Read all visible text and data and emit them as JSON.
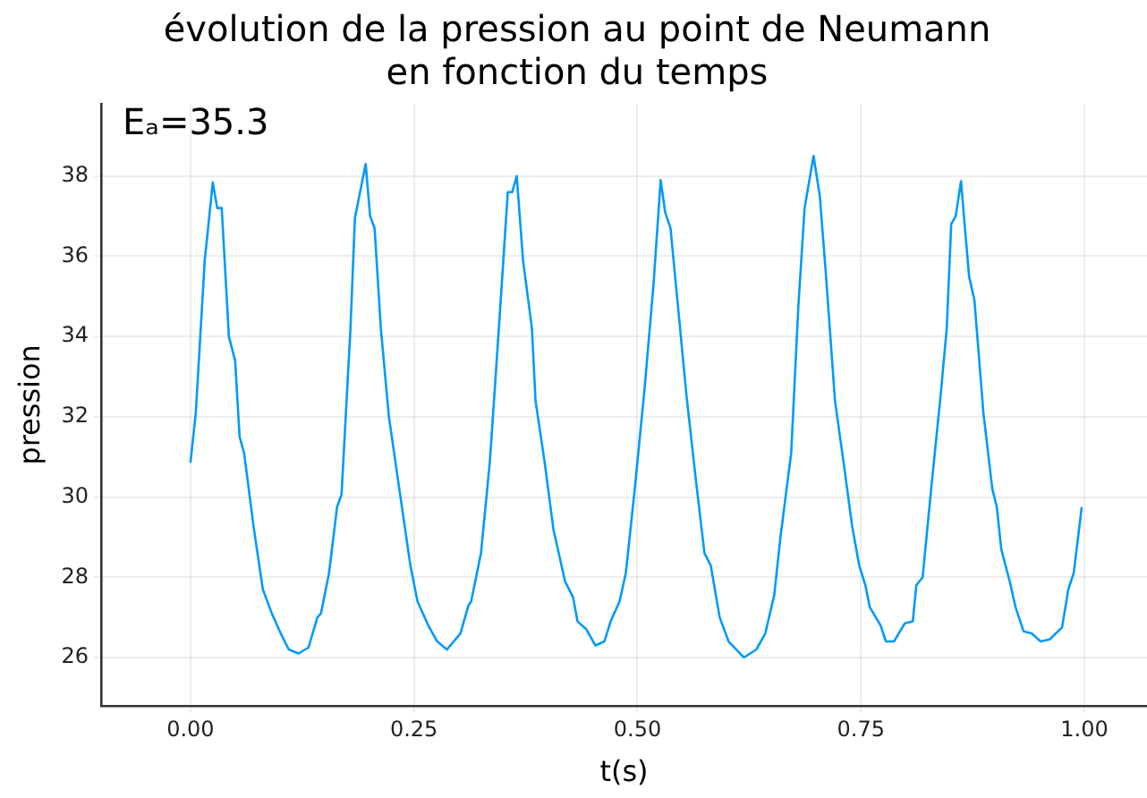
{
  "chart_data": {
    "type": "line",
    "title": "évolution de la pression au point de Neumann\nen fonction du temps",
    "xlabel": "t(s)",
    "ylabel": "pression",
    "annotations": [
      "Eₐ=35.3"
    ],
    "xlim": [
      -0.1,
      1.07
    ],
    "ylim": [
      24.8,
      39.8
    ],
    "xticks": [
      {
        "value": 0,
        "label": "0.00"
      },
      {
        "value": 0.25,
        "label": "0.25"
      },
      {
        "value": 0.5,
        "label": "0.50"
      },
      {
        "value": 0.75,
        "label": "0.75"
      },
      {
        "value": 1,
        "label": "1.00"
      }
    ],
    "yticks": [
      26,
      28,
      30,
      32,
      34,
      36,
      38
    ],
    "grid": true,
    "legend": false,
    "marker": "none",
    "line_style": "solid",
    "series": [
      {
        "color": "#009af9",
        "x": [
          0,
          0.006,
          0.016,
          0.025,
          0.03,
          0.035,
          0.043,
          0.05,
          0.055,
          0.06,
          0.071,
          0.081,
          0.091,
          0.101,
          0.11,
          0.121,
          0.132,
          0.142,
          0.146,
          0.155,
          0.164,
          0.169,
          0.179,
          0.184,
          0.196,
          0.201,
          0.206,
          0.213,
          0.222,
          0.233,
          0.246,
          0.254,
          0.266,
          0.276,
          0.287,
          0.302,
          0.311,
          0.314,
          0.325,
          0.335,
          0.345,
          0.355,
          0.36,
          0.365,
          0.372,
          0.382,
          0.386,
          0.396,
          0.406,
          0.419,
          0.428,
          0.433,
          0.443,
          0.453,
          0.463,
          0.47,
          0.48,
          0.487,
          0.497,
          0.508,
          0.518,
          0.526,
          0.531,
          0.537,
          0.546,
          0.555,
          0.565,
          0.575,
          0.582,
          0.592,
          0.602,
          0.619,
          0.633,
          0.643,
          0.653,
          0.66,
          0.672,
          0.68,
          0.687,
          0.697,
          0.704,
          0.711,
          0.721,
          0.731,
          0.74,
          0.748,
          0.755,
          0.76,
          0.772,
          0.778,
          0.787,
          0.799,
          0.808,
          0.812,
          0.819,
          0.829,
          0.839,
          0.846,
          0.851,
          0.856,
          0.862,
          0.866,
          0.871,
          0.877,
          0.887,
          0.897,
          0.902,
          0.907,
          0.917,
          0.923,
          0.932,
          0.941,
          0.951,
          0.961,
          0.975,
          0.982,
          0.988,
          0.997
        ],
        "values": [
          30.85,
          32.1,
          35.9,
          37.84,
          37.2,
          37.2,
          34.0,
          33.4,
          31.5,
          31.1,
          29.2,
          27.7,
          27.1,
          26.6,
          26.2,
          26.1,
          26.25,
          27.0,
          27.1,
          28.1,
          29.75,
          30.06,
          34.2,
          36.95,
          38.3,
          37.0,
          36.7,
          34.2,
          32.0,
          30.3,
          28.3,
          27.4,
          26.8,
          26.4,
          26.2,
          26.6,
          27.3,
          27.4,
          28.6,
          30.9,
          34.2,
          37.6,
          37.6,
          38.0,
          35.9,
          34.2,
          32.4,
          30.9,
          29.2,
          27.9,
          27.5,
          26.9,
          26.7,
          26.3,
          26.4,
          26.9,
          27.4,
          28.1,
          30.2,
          32.7,
          35.3,
          37.9,
          37.1,
          36.7,
          34.6,
          32.5,
          30.5,
          28.6,
          28.3,
          27.0,
          26.4,
          26.0,
          26.2,
          26.6,
          27.55,
          29.0,
          31.1,
          34.75,
          37.2,
          38.5,
          37.5,
          35.5,
          32.4,
          30.8,
          29.3,
          28.3,
          27.8,
          27.25,
          26.8,
          26.4,
          26.4,
          26.85,
          26.9,
          27.8,
          28.0,
          30.3,
          32.5,
          34.2,
          36.8,
          37.0,
          37.87,
          36.8,
          35.5,
          34.9,
          32.1,
          30.2,
          29.75,
          28.7,
          27.85,
          27.25,
          26.65,
          26.6,
          26.4,
          26.45,
          26.75,
          27.7,
          28.1,
          29.75
        ]
      }
    ]
  }
}
